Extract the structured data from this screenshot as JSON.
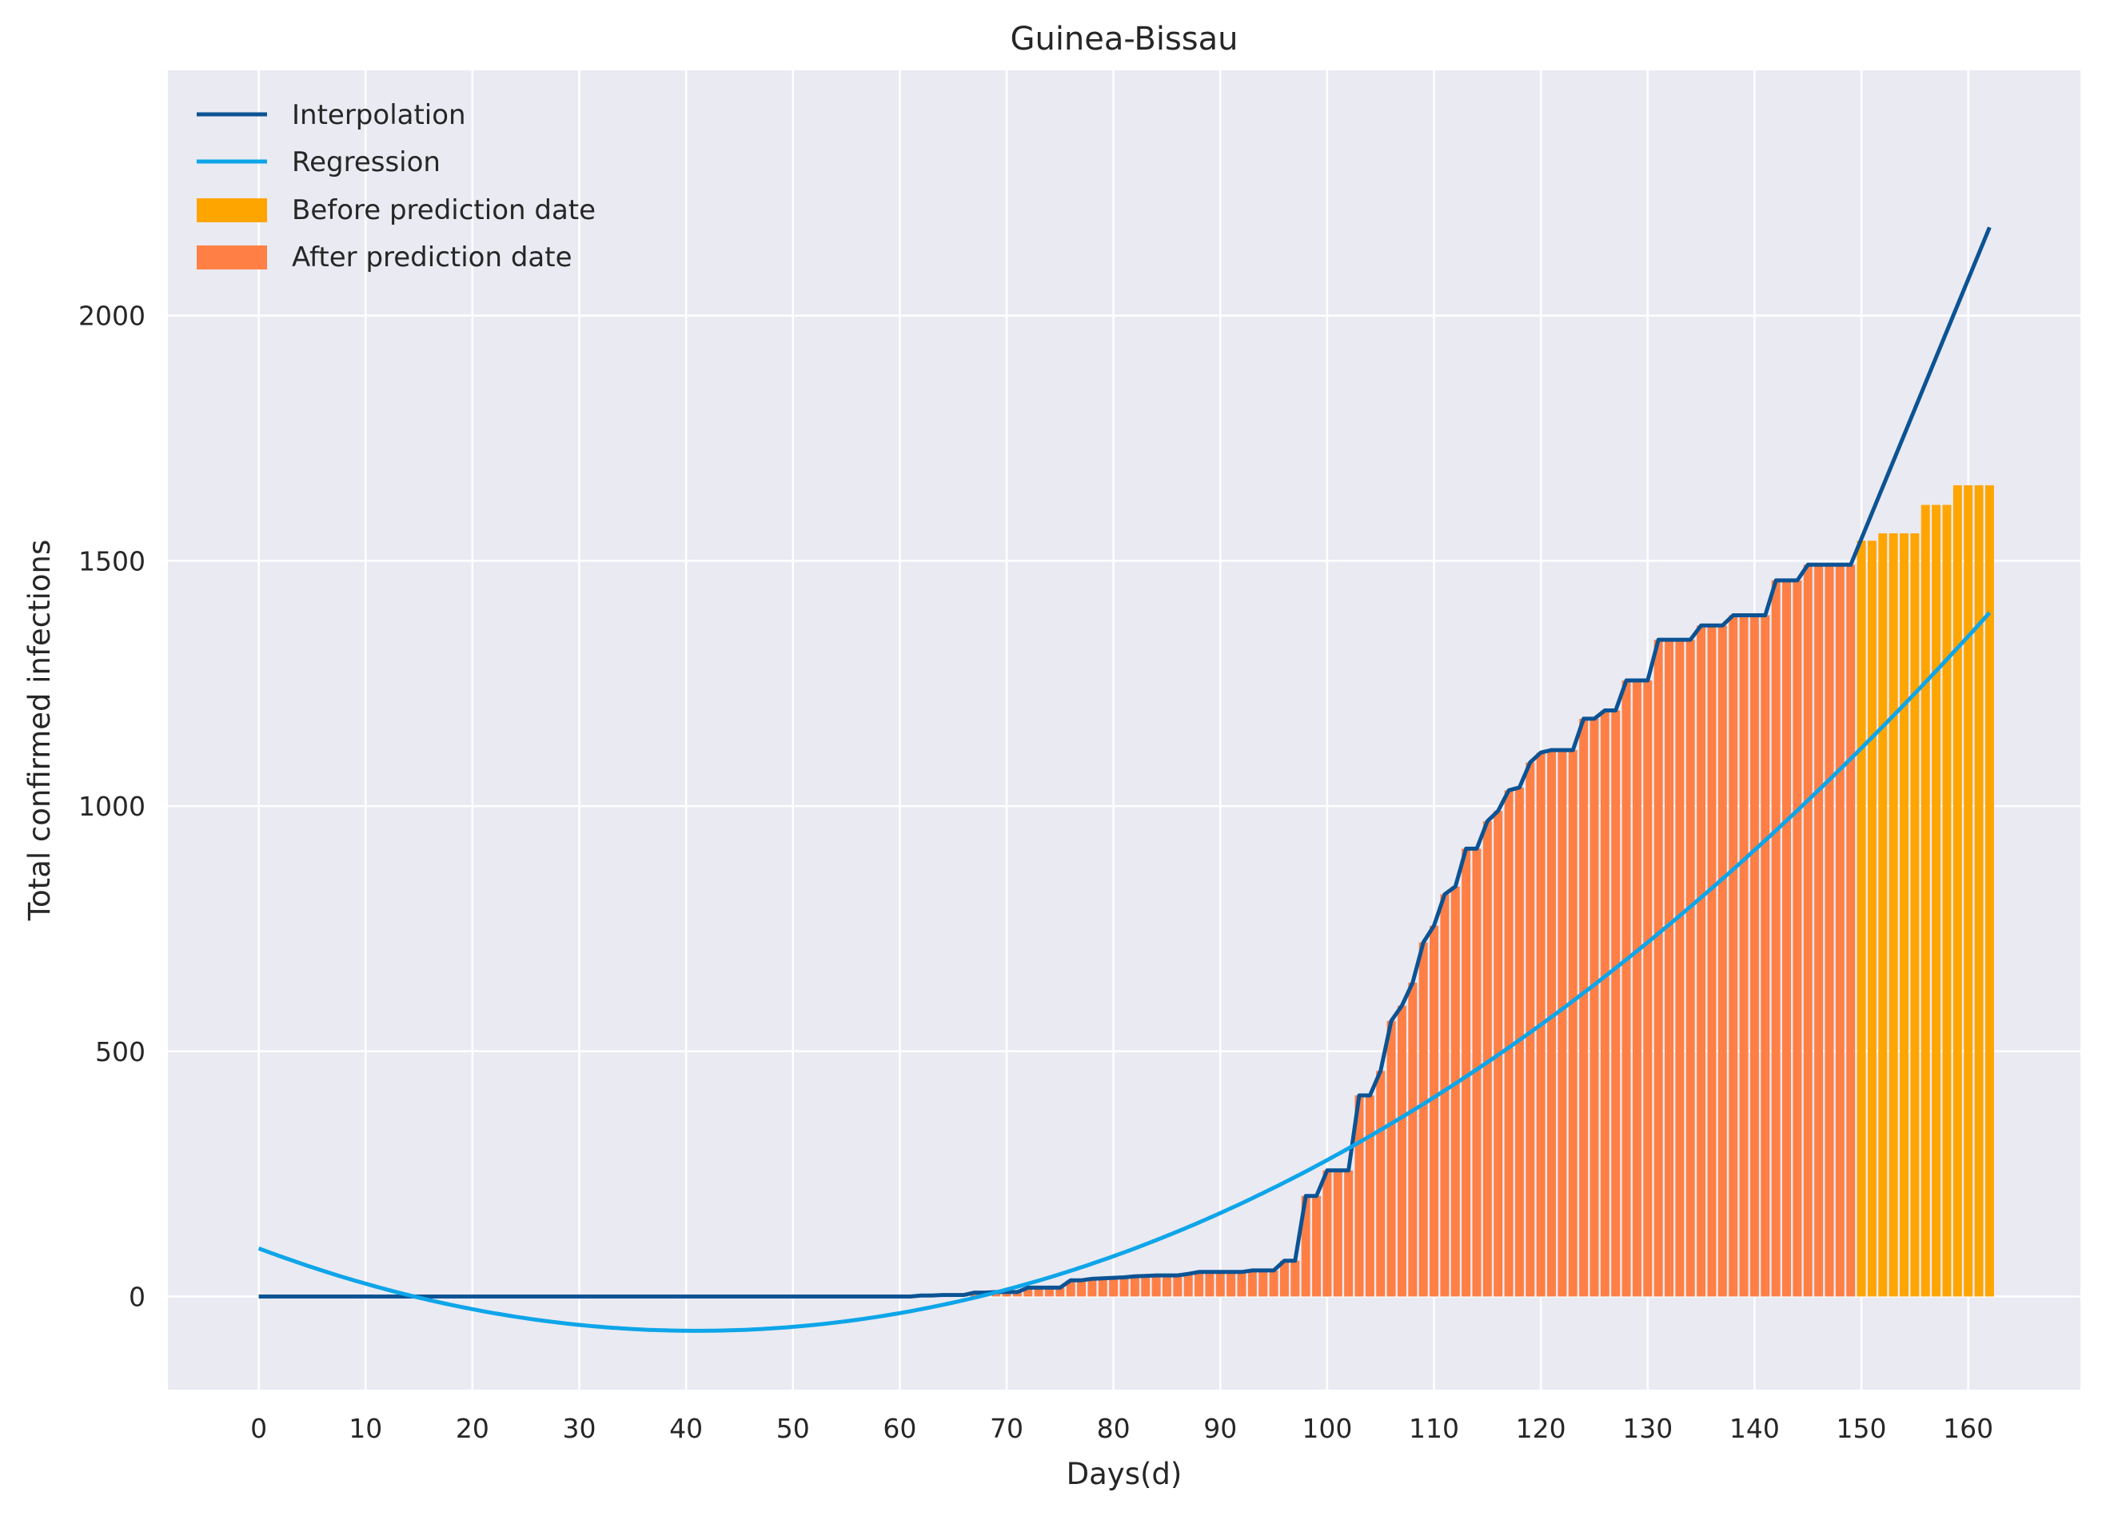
{
  "chart_data": {
    "type": "bar",
    "title": "Guinea-Bissau",
    "xlabel": "Days(d)",
    "ylabel": "Total confirmed infections",
    "xlim": [
      -8.5,
      170.5
    ],
    "ylim": [
      -190,
      2500
    ],
    "xticks": [
      0,
      10,
      20,
      30,
      40,
      50,
      60,
      70,
      80,
      90,
      100,
      110,
      120,
      130,
      140,
      150,
      160
    ],
    "yticks": [
      0,
      500,
      1000,
      1500,
      2000
    ],
    "grid": true,
    "legend_position": "top-left",
    "prediction_day": 150,
    "last_day": 162,
    "series": [
      {
        "name": "Interpolation",
        "kind": "line",
        "color": "#0b5394"
      },
      {
        "name": "Regression",
        "kind": "line",
        "color": "#0ea5e9"
      },
      {
        "name": "Before prediction date",
        "kind": "bar",
        "color": "#ffa500"
      },
      {
        "name": "After prediction date",
        "kind": "bar",
        "color": "#ff7f45"
      }
    ],
    "confirmed_keypoints": [
      [
        0,
        0
      ],
      [
        61,
        0
      ],
      [
        62,
        2
      ],
      [
        66,
        3
      ],
      [
        67,
        8
      ],
      [
        71,
        9
      ],
      [
        72,
        18
      ],
      [
        75,
        18
      ],
      [
        76,
        33
      ],
      [
        77,
        33
      ],
      [
        78,
        36
      ],
      [
        80,
        38
      ],
      [
        84,
        43
      ],
      [
        86,
        43
      ],
      [
        87,
        46
      ],
      [
        88,
        50
      ],
      [
        92,
        50
      ],
      [
        93,
        53
      ],
      [
        95,
        53
      ],
      [
        96,
        73
      ],
      [
        97,
        73
      ],
      [
        98,
        205
      ],
      [
        99,
        205
      ],
      [
        100,
        257
      ],
      [
        102,
        257
      ],
      [
        103,
        410
      ],
      [
        104,
        410
      ],
      [
        105,
        460
      ],
      [
        106,
        562
      ],
      [
        107,
        593
      ],
      [
        108,
        640
      ],
      [
        109,
        722
      ],
      [
        110,
        756
      ],
      [
        111,
        820
      ],
      [
        112,
        836
      ],
      [
        113,
        913
      ],
      [
        114,
        913
      ],
      [
        115,
        969
      ],
      [
        116,
        990
      ],
      [
        117,
        1032
      ],
      [
        118,
        1038
      ],
      [
        119,
        1089
      ],
      [
        120,
        1109
      ],
      [
        121,
        1114
      ],
      [
        123,
        1114
      ],
      [
        124,
        1178
      ],
      [
        125,
        1178
      ],
      [
        126,
        1195
      ],
      [
        127,
        1195
      ],
      [
        128,
        1256
      ],
      [
        130,
        1256
      ],
      [
        131,
        1339
      ],
      [
        134,
        1339
      ],
      [
        135,
        1368
      ],
      [
        137,
        1368
      ],
      [
        138,
        1389
      ],
      [
        141,
        1389
      ],
      [
        142,
        1460
      ],
      [
        144,
        1460
      ],
      [
        145,
        1492
      ],
      [
        148,
        1492
      ],
      [
        149,
        1492
      ],
      [
        150,
        1541
      ],
      [
        151,
        1541
      ],
      [
        152,
        1556
      ],
      [
        155,
        1556
      ],
      [
        156,
        1614
      ],
      [
        158,
        1614
      ],
      [
        159,
        1654
      ],
      [
        162,
        1654
      ]
    ],
    "interpolation_keypoints": [
      [
        149,
        1492
      ],
      [
        162,
        2180
      ]
    ],
    "regression": {
      "x_min": 0,
      "x_max": 162,
      "vertex_day": 41,
      "vertex_value": -70,
      "curvature": 0.1
    }
  }
}
